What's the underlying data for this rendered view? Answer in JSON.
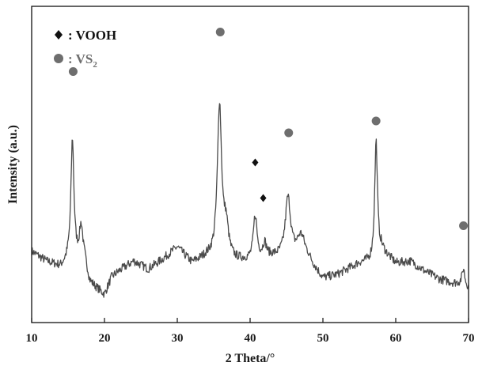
{
  "chart_data": {
    "type": "line",
    "title": "",
    "xlabel": "2 Theta/°",
    "ylabel": "Intensity (a.u.)",
    "xlim": [
      10,
      70
    ],
    "x_ticks": [
      10,
      20,
      30,
      40,
      50,
      60,
      70
    ],
    "y_ticks_shown": false,
    "grid": false,
    "legend": {
      "placement": "top-left",
      "items": [
        {
          "marker": "diamond",
          "prefix": ": ",
          "label": "VOOH",
          "sub": "",
          "color": "#111111"
        },
        {
          "marker": "circle",
          "prefix": ": ",
          "label": "VS",
          "sub": "2",
          "color": "#6e6e6e"
        }
      ]
    },
    "series": [
      {
        "color": "#4a4a4a",
        "baseline": 0.3,
        "noise": 0.022,
        "background_points": [
          [
            10,
            0.36
          ],
          [
            12,
            0.31
          ],
          [
            14,
            0.28
          ],
          [
            15,
            0.31
          ],
          [
            17.3,
            0.3
          ],
          [
            18,
            0.2
          ],
          [
            19,
            0.17
          ],
          [
            20,
            0.14
          ],
          [
            21,
            0.23
          ],
          [
            22,
            0.26
          ],
          [
            24,
            0.31
          ],
          [
            26,
            0.27
          ],
          [
            28,
            0.32
          ],
          [
            30,
            0.38
          ],
          [
            32,
            0.3
          ],
          [
            34,
            0.33
          ],
          [
            38,
            0.31
          ],
          [
            40,
            0.31
          ],
          [
            43,
            0.33
          ],
          [
            48,
            0.31
          ],
          [
            50,
            0.22
          ],
          [
            52,
            0.24
          ],
          [
            55,
            0.3
          ],
          [
            56.5,
            0.31
          ],
          [
            58,
            0.37
          ],
          [
            60,
            0.3
          ],
          [
            62,
            0.31
          ],
          [
            64,
            0.26
          ],
          [
            66,
            0.22
          ],
          [
            68,
            0.2
          ],
          [
            69,
            0.2
          ],
          [
            70,
            0.18
          ]
        ],
        "peaks": [
          {
            "x": 15.6,
            "h": 0.62,
            "w": 0.25
          },
          {
            "x": 16.8,
            "h": 0.18,
            "w": 0.3
          },
          {
            "x": 35.8,
            "h": 0.78,
            "w": 0.35
          },
          {
            "x": 36.7,
            "h": 0.15,
            "w": 0.4
          },
          {
            "x": 40.7,
            "h": 0.22,
            "w": 0.3
          },
          {
            "x": 42.0,
            "h": 0.07,
            "w": 0.3
          },
          {
            "x": 45.2,
            "h": 0.3,
            "w": 0.45
          },
          {
            "x": 47.0,
            "h": 0.12,
            "w": 0.7
          },
          {
            "x": 57.3,
            "h": 0.58,
            "w": 0.22
          },
          {
            "x": 69.3,
            "h": 0.08,
            "w": 0.2
          }
        ]
      }
    ],
    "annotations": [
      {
        "phase": "VS2",
        "marker": "circle",
        "x": 15.7,
        "y": 1.27
      },
      {
        "phase": "VS2",
        "marker": "circle",
        "x": 35.9,
        "y": 1.47
      },
      {
        "phase": "VOOH",
        "marker": "diamond",
        "x": 40.7,
        "y": 0.81
      },
      {
        "phase": "VOOH",
        "marker": "diamond",
        "x": 41.8,
        "y": 0.63
      },
      {
        "phase": "VS2",
        "marker": "circle",
        "x": 45.3,
        "y": 0.96
      },
      {
        "phase": "VS2",
        "marker": "circle",
        "x": 57.3,
        "y": 1.02
      },
      {
        "phase": "VS2",
        "marker": "circle",
        "x": 69.3,
        "y": 0.49
      }
    ],
    "marker_colors": {
      "circle": "#6e6e6e",
      "diamond": "#111111"
    }
  }
}
